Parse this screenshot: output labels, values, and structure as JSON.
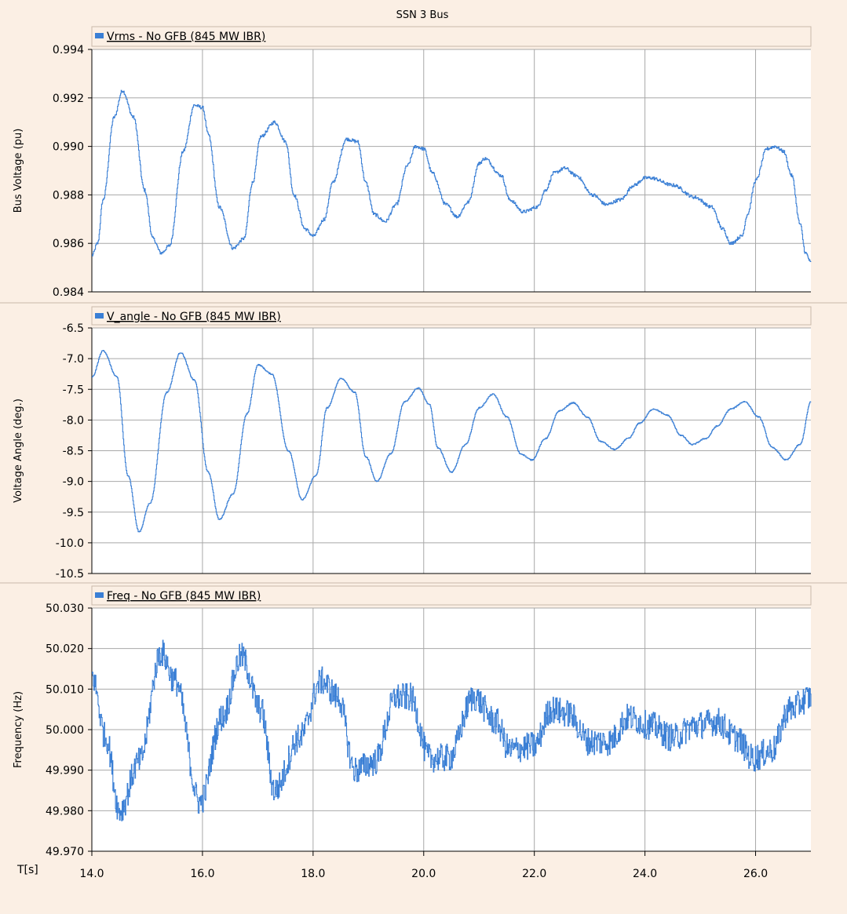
{
  "window_title": "SSN 3 Bus",
  "x_axis_label": "T[s]",
  "colors": {
    "background": "#fbefe4",
    "plot_bg": "#ffffff",
    "grid": "#a8a8a8",
    "series": "#3a7fd5",
    "legend_bg": "#fbefe4"
  },
  "chart_data": [
    {
      "type": "line",
      "legend": "Vrms - No GFB (845 MW IBR)",
      "ylabel": "Bus Voltage (pu)",
      "ylim": [
        0.984,
        0.994
      ],
      "yticks": [
        "0.994",
        "0.992",
        "0.990",
        "0.988",
        "0.986",
        "0.984"
      ],
      "xlim": [
        14.0,
        27.0
      ],
      "xticks": [
        "14.0",
        "16.0",
        "18.0",
        "20.0",
        "22.0",
        "24.0",
        "26.0"
      ],
      "grid": true,
      "noise": 7e-05,
      "series": [
        {
          "x": [
            14.0,
            14.1,
            14.2,
            14.4,
            14.55,
            14.75,
            14.95,
            15.1,
            15.25,
            15.4,
            15.65,
            15.85,
            16.0,
            16.1,
            16.3,
            16.55,
            16.75,
            16.9,
            17.05,
            17.3,
            17.5,
            17.65,
            17.85,
            18.0,
            18.2,
            18.35,
            18.6,
            18.8,
            18.95,
            19.1,
            19.3,
            19.5,
            19.7,
            19.85,
            20.0,
            20.15,
            20.4,
            20.6,
            20.8,
            21.0,
            21.1,
            21.4,
            21.55,
            21.8,
            22.05,
            22.2,
            22.35,
            22.55,
            22.75,
            23.05,
            23.3,
            23.55,
            23.8,
            24.0,
            24.1,
            24.5,
            24.9,
            25.2,
            25.4,
            25.55,
            25.75,
            25.85,
            26.0,
            26.2,
            26.35,
            26.5,
            26.65,
            26.8,
            26.9,
            27.0
          ],
          "y": [
            0.9855,
            0.986,
            0.9878,
            0.9912,
            0.9923,
            0.9912,
            0.9882,
            0.9862,
            0.9856,
            0.9859,
            0.9898,
            0.9917,
            0.9916,
            0.9905,
            0.9875,
            0.9858,
            0.9862,
            0.9885,
            0.9904,
            0.991,
            0.9902,
            0.988,
            0.9866,
            0.9863,
            0.987,
            0.9885,
            0.9903,
            0.9902,
            0.9885,
            0.9872,
            0.9869,
            0.9876,
            0.9892,
            0.99,
            0.9899,
            0.9889,
            0.9876,
            0.9871,
            0.9877,
            0.9893,
            0.9895,
            0.9888,
            0.9878,
            0.9873,
            0.9875,
            0.9882,
            0.9889,
            0.9891,
            0.9888,
            0.988,
            0.9876,
            0.9878,
            0.9884,
            0.9887,
            0.9887,
            0.9884,
            0.9879,
            0.9875,
            0.9866,
            0.986,
            0.9863,
            0.9872,
            0.9886,
            0.9899,
            0.99,
            0.9898,
            0.9888,
            0.9868,
            0.9856,
            0.9852
          ]
        }
      ]
    },
    {
      "type": "line",
      "legend": "V_angle - No GFB (845 MW IBR)",
      "ylabel": "Voltage Angle (deg.)",
      "ylim": [
        -10.5,
        -6.5
      ],
      "yticks": [
        "-6.5",
        "-7.0",
        "-7.5",
        "-8.0",
        "-8.5",
        "-9.0",
        "-9.5",
        "-10.0",
        "-10.5"
      ],
      "xlim": [
        14.0,
        27.0
      ],
      "xticks": [
        "14.0",
        "16.0",
        "18.0",
        "20.0",
        "22.0",
        "24.0",
        "26.0"
      ],
      "grid": true,
      "noise": 0.01,
      "series": [
        {
          "x": [
            14.0,
            14.2,
            14.45,
            14.65,
            14.85,
            15.05,
            15.35,
            15.6,
            15.85,
            16.1,
            16.3,
            16.55,
            16.8,
            17.0,
            17.25,
            17.55,
            17.8,
            18.05,
            18.25,
            18.5,
            18.75,
            18.95,
            19.15,
            19.4,
            19.65,
            19.9,
            20.1,
            20.25,
            20.5,
            20.75,
            21.0,
            21.25,
            21.5,
            21.75,
            21.95,
            22.2,
            22.45,
            22.7,
            22.95,
            23.2,
            23.45,
            23.7,
            23.9,
            24.15,
            24.4,
            24.65,
            24.85,
            25.1,
            25.3,
            25.55,
            25.8,
            26.05,
            26.3,
            26.55,
            26.8,
            27.0
          ],
          "y": [
            -7.3,
            -6.87,
            -7.3,
            -8.9,
            -9.82,
            -9.35,
            -7.55,
            -6.9,
            -7.35,
            -8.85,
            -9.62,
            -9.2,
            -7.9,
            -7.1,
            -7.25,
            -8.5,
            -9.3,
            -8.9,
            -7.8,
            -7.32,
            -7.55,
            -8.6,
            -9.0,
            -8.55,
            -7.7,
            -7.48,
            -7.75,
            -8.45,
            -8.85,
            -8.4,
            -7.8,
            -7.58,
            -7.95,
            -8.55,
            -8.65,
            -8.3,
            -7.85,
            -7.72,
            -7.95,
            -8.35,
            -8.48,
            -8.3,
            -8.05,
            -7.82,
            -7.92,
            -8.25,
            -8.4,
            -8.3,
            -8.1,
            -7.82,
            -7.7,
            -7.95,
            -8.45,
            -8.65,
            -8.4,
            -7.7
          ]
        }
      ]
    },
    {
      "type": "line",
      "legend": "Freq - No GFB (845 MW IBR)",
      "ylabel": "Frequency (Hz)",
      "ylim": [
        49.97,
        50.03
      ],
      "yticks": [
        "50.030",
        "50.020",
        "50.010",
        "50.000",
        "49.990",
        "49.980",
        "49.970"
      ],
      "xlim": [
        14.0,
        27.0
      ],
      "xticks": [
        "14.0",
        "16.0",
        "18.0",
        "20.0",
        "22.0",
        "24.0",
        "26.0"
      ],
      "grid": true,
      "noise": 0.0035,
      "series": [
        {
          "x": [
            14.0,
            14.25,
            14.5,
            14.85,
            15.25,
            15.5,
            15.95,
            16.35,
            16.7,
            17.05,
            17.3,
            17.75,
            18.15,
            18.45,
            18.75,
            19.1,
            19.5,
            19.75,
            20.1,
            20.45,
            20.9,
            21.3,
            21.55,
            22.0,
            22.3,
            22.6,
            23.0,
            23.35,
            23.7,
            24.1,
            24.5,
            24.9,
            25.3,
            25.65,
            25.95,
            26.3,
            26.6,
            27.0
          ],
          "y": [
            50.013,
            49.998,
            49.98,
            49.992,
            50.019,
            50.012,
            49.982,
            50.003,
            50.018,
            50.005,
            49.985,
            49.998,
            50.012,
            50.008,
            49.99,
            49.992,
            50.008,
            50.008,
            49.993,
            49.993,
            50.008,
            50.002,
            49.995,
            49.996,
            50.005,
            50.004,
            49.997,
            49.997,
            50.003,
            50.001,
            49.998,
            50.001,
            50.002,
            49.998,
            49.993,
            49.995,
            50.005,
            50.008
          ]
        }
      ]
    }
  ]
}
